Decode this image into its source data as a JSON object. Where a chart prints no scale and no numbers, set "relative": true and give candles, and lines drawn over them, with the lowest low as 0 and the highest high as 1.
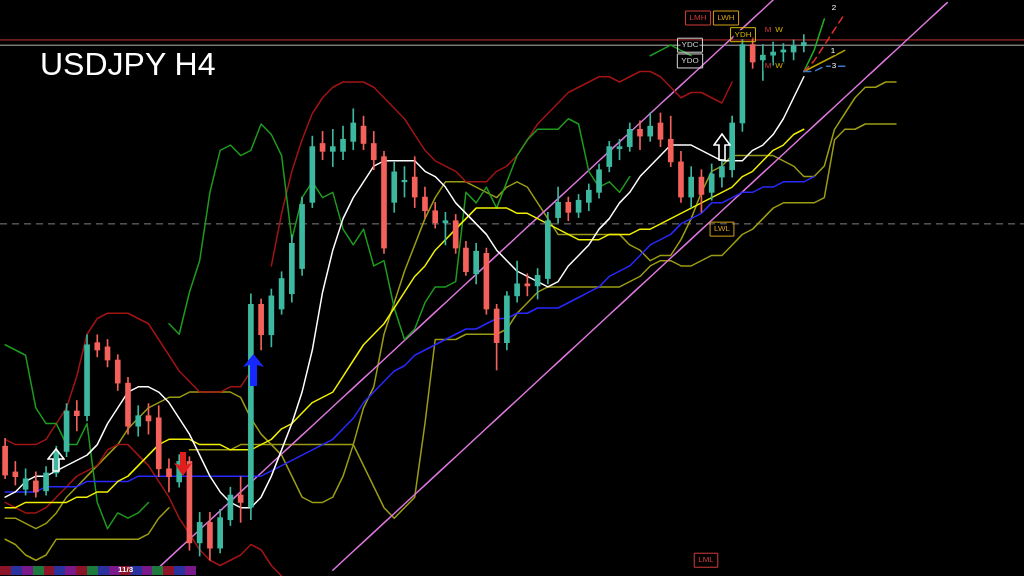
{
  "chart_data": {
    "type": "candlestick",
    "title": "USDJPY H4",
    "relative": true,
    "categories": [
      null,
      null,
      null,
      null,
      null,
      null,
      null,
      null,
      null,
      null,
      null,
      null,
      null,
      null,
      null,
      null,
      null,
      null,
      null,
      null,
      null,
      null,
      null,
      null,
      null,
      null,
      null,
      null,
      null,
      null,
      null,
      null,
      null,
      null,
      null,
      null,
      null,
      null,
      null,
      null,
      null,
      null,
      null,
      null,
      null,
      null,
      null,
      null,
      null,
      null,
      null,
      null,
      null,
      null,
      null,
      null,
      null,
      null,
      null,
      null,
      null,
      null,
      null,
      null,
      null,
      null,
      null,
      null,
      null,
      null,
      null,
      null,
      null,
      null,
      null,
      null,
      null,
      null,
      null,
      null,
      null,
      null,
      null,
      null,
      null,
      null,
      null,
      null,
      null,
      null,
      null,
      null,
      null,
      null,
      null,
      null,
      null,
      null,
      null,
      null
    ],
    "ohlc": [
      [
        0.217,
        0.232,
        0.155,
        0.162
      ],
      [
        0.168,
        0.188,
        0.143,
        0.159
      ],
      [
        0.135,
        0.174,
        0.124,
        0.155
      ],
      [
        0.151,
        0.168,
        0.12,
        0.13
      ],
      [
        0.132,
        0.178,
        0.124,
        0.166
      ],
      [
        0.166,
        0.217,
        0.159,
        0.207
      ],
      [
        0.207,
        0.298,
        0.197,
        0.284
      ],
      [
        0.284,
        0.304,
        0.246,
        0.275
      ],
      [
        0.275,
        0.429,
        0.265,
        0.41
      ],
      [
        0.414,
        0.429,
        0.387,
        0.4
      ],
      [
        0.406,
        0.42,
        0.368,
        0.381
      ],
      [
        0.381,
        0.391,
        0.323,
        0.337
      ],
      [
        0.337,
        0.348,
        0.24,
        0.255
      ],
      [
        0.255,
        0.294,
        0.236,
        0.275
      ],
      [
        0.275,
        0.298,
        0.24,
        0.265
      ],
      [
        0.271,
        0.294,
        0.159,
        0.174
      ],
      [
        0.174,
        0.193,
        0.13,
        0.159
      ],
      [
        0.149,
        0.201,
        0.139,
        0.188
      ],
      [
        0.188,
        0.197,
        0.019,
        0.033
      ],
      [
        0.033,
        0.091,
        0.008,
        0.072
      ],
      [
        0.072,
        0.091,
        0,
        0.023
      ],
      [
        0.023,
        0.097,
        0.014,
        0.081
      ],
      [
        0.077,
        0.139,
        0.066,
        0.124
      ],
      [
        0.124,
        0.159,
        0.072,
        0.11
      ],
      [
        0.101,
        0.507,
        0.077,
        0.487
      ],
      [
        0.487,
        0.497,
        0.4,
        0.429
      ],
      [
        0.429,
        0.516,
        0.406,
        0.503
      ],
      [
        0.478,
        0.549,
        0.468,
        0.536
      ],
      [
        0.507,
        0.619,
        0.491,
        0.603
      ],
      [
        0.555,
        0.691,
        0.542,
        0.677
      ],
      [
        0.681,
        0.807,
        0.671,
        0.787
      ],
      [
        0.793,
        0.816,
        0.762,
        0.778
      ],
      [
        0.778,
        0.82,
        0.749,
        0.787
      ],
      [
        0.778,
        0.826,
        0.762,
        0.801
      ],
      [
        0.797,
        0.859,
        0.781,
        0.832
      ],
      [
        0.826,
        0.845,
        0.781,
        0.793
      ],
      [
        0.793,
        0.816,
        0.743,
        0.762
      ],
      [
        0.768,
        0.778,
        0.584,
        0.594
      ],
      [
        0.681,
        0.758,
        0.662,
        0.739
      ],
      [
        0.72,
        0.749,
        0.691,
        0.723
      ],
      [
        0.729,
        0.768,
        0.671,
        0.691
      ],
      [
        0.691,
        0.71,
        0.652,
        0.665
      ],
      [
        0.665,
        0.681,
        0.632,
        0.642
      ],
      [
        0.642,
        0.662,
        0.6,
        0.646
      ],
      [
        0.646,
        0.658,
        0.584,
        0.594
      ],
      [
        0.594,
        0.607,
        0.542,
        0.549
      ],
      [
        0.545,
        0.603,
        0.526,
        0.588
      ],
      [
        0.584,
        0.594,
        0.468,
        0.478
      ],
      [
        0.478,
        0.487,
        0.362,
        0.414
      ],
      [
        0.414,
        0.511,
        0.4,
        0.503
      ],
      [
        0.503,
        0.569,
        0.491,
        0.526
      ],
      [
        0.526,
        0.545,
        0.503,
        0.522
      ],
      [
        0.522,
        0.555,
        0.497,
        0.542
      ],
      [
        0.536,
        0.662,
        0.526,
        0.646
      ],
      [
        0.652,
        0.71,
        0.642,
        0.681
      ],
      [
        0.681,
        0.691,
        0.646,
        0.662
      ],
      [
        0.662,
        0.696,
        0.652,
        0.685
      ],
      [
        0.681,
        0.716,
        0.665,
        0.704
      ],
      [
        0.7,
        0.754,
        0.689,
        0.743
      ],
      [
        0.749,
        0.797,
        0.739,
        0.787
      ],
      [
        0.783,
        0.801,
        0.762,
        0.787
      ],
      [
        0.787,
        0.832,
        0.778,
        0.82
      ],
      [
        0.82,
        0.836,
        0.781,
        0.807
      ],
      [
        0.807,
        0.851,
        0.797,
        0.826
      ],
      [
        0.832,
        0.851,
        0.787,
        0.801
      ],
      [
        0.801,
        0.845,
        0.749,
        0.758
      ],
      [
        0.758,
        0.778,
        0.681,
        0.691
      ],
      [
        0.691,
        0.749,
        0.671,
        0.729
      ],
      [
        0.729,
        0.743,
        0.662,
        0.696
      ],
      [
        0.7,
        0.754,
        0.685,
        0.735
      ],
      [
        0.729,
        0.762,
        0.71,
        0.749
      ],
      [
        0.743,
        0.845,
        0.729,
        0.832
      ],
      [
        0.832,
        0.994,
        0.816,
        0.981
      ],
      [
        0.981,
        0.994,
        0.936,
        0.948
      ],
      [
        0.952,
        0.981,
        0.913,
        0.961
      ],
      [
        0.961,
        0.986,
        0.942,
        0.967
      ],
      [
        0.967,
        0.983,
        0.946,
        0.971
      ],
      [
        0.967,
        0.99,
        0.952,
        0.979
      ],
      [
        0.979,
        1,
        0.967,
        0.985
      ],
      null,
      null,
      null,
      null,
      null,
      null,
      null,
      null,
      null,
      null,
      null,
      null,
      null,
      null,
      null,
      null,
      null,
      null,
      null,
      null,
      null
    ],
    "colors": [
      "#f4605a",
      "#f4605a",
      "#3cb8a0",
      "#f4605a",
      "#3cb8a0",
      "#3cb8a0",
      "#3cb8a0",
      "#f4605a",
      "#3cb8a0",
      "#f4605a",
      "#f4605a",
      "#f4605a",
      "#f4605a",
      "#3cb8a0",
      "#f4605a",
      "#f4605a",
      "#f4605a",
      "#3cb8a0",
      "#f4605a",
      "#3cb8a0",
      "#f4605a",
      "#3cb8a0",
      "#3cb8a0",
      "#f4605a",
      "#3cb8a0",
      "#f4605a",
      "#3cb8a0",
      "#3cb8a0",
      "#3cb8a0",
      "#3cb8a0",
      "#3cb8a0",
      "#f4605a",
      "#3cb8a0",
      "#3cb8a0",
      "#3cb8a0",
      "#f4605a",
      "#f4605a",
      "#f4605a",
      "#3cb8a0",
      "#3cb8a0",
      "#f4605a",
      "#f4605a",
      "#f4605a",
      "#3cb8a0",
      "#f4605a",
      "#f4605a",
      "#3cb8a0",
      "#f4605a",
      "#f4605a",
      "#3cb8a0",
      "#3cb8a0",
      "#f4605a",
      "#3cb8a0",
      "#3cb8a0",
      "#3cb8a0",
      "#f4605a",
      "#3cb8a0",
      "#3cb8a0",
      "#3cb8a0",
      "#3cb8a0",
      "#3cb8a0",
      "#3cb8a0",
      "#f4605a",
      "#3cb8a0",
      "#f4605a",
      "#f4605a",
      "#f4605a",
      "#3cb8a0",
      "#f4605a",
      "#3cb8a0",
      "#3cb8a0",
      "#3cb8a0",
      "#3cb8a0",
      "#f4605a",
      "#3cb8a0",
      "#3cb8a0",
      "#3cb8a0",
      "#3cb8a0",
      "#3cb8a0",
      null,
      null,
      null,
      null,
      null,
      null,
      null,
      null,
      null,
      null,
      null,
      null,
      null,
      null,
      null,
      null,
      null,
      null,
      null,
      null,
      null
    ],
    "series": [
      {
        "type": "line",
        "color": "#9c9c14",
        "values": [
          0.08,
          0.08,
          0.07,
          0.06,
          0.07,
          0.09,
          0.12,
          0.14,
          0.16,
          0.18,
          0.2,
          0.22,
          0.25,
          0.27,
          0.29,
          0.3,
          0.31,
          0.31,
          0.32,
          0.32,
          0.32,
          0.32,
          0.32,
          0.31,
          0.27,
          0.24,
          0.22,
          0.2,
          0.16,
          0.12,
          0.11,
          0.11,
          0.12,
          0.16,
          0.22,
          0.29,
          0.33,
          0.43,
          0.49,
          0.55,
          0.6,
          0.65,
          0.69,
          0.72,
          0.72,
          0.72,
          0.71,
          0.7,
          0.69,
          0.71,
          0.72,
          0.71,
          0.68,
          0.65,
          0.62,
          0.62,
          0.62,
          0.62,
          0.62,
          0.62,
          0.62,
          0.6,
          0.59,
          0.57,
          0.58,
          0.58,
          0.61,
          0.65,
          0.7,
          0.74,
          0.75,
          0.77,
          0.77,
          0.77,
          0.77,
          0.77,
          0.76,
          0.75,
          0.73,
          0.73,
          0.75,
          0.82,
          0.85,
          0.88,
          0.9,
          0.9,
          0.91,
          0.91,
          null,
          null,
          null,
          null,
          null,
          null,
          null,
          null,
          null,
          null,
          null,
          null
        ]
      },
      {
        "type": "line",
        "color": "#9c9c14",
        "values": [
          0.04,
          0.03,
          0.01,
          0.0,
          0.01,
          0.04,
          0.04,
          0.04,
          0.04,
          0.04,
          0.04,
          0.04,
          0.04,
          0.04,
          0.05,
          0.08,
          0.1,
          null,
          0.21,
          0.21,
          0.21,
          0.21,
          0.21,
          0.22,
          0.22,
          0.22,
          0.22,
          0.22,
          0.22,
          0.22,
          0.22,
          0.22,
          0.22,
          0.22,
          0.22,
          0.18,
          0.14,
          0.1,
          0.08,
          0.1,
          0.12,
          0.26,
          0.42,
          0.42,
          0.42,
          0.43,
          0.43,
          0.43,
          0.43,
          0.44,
          0.47,
          0.49,
          0.51,
          0.52,
          0.52,
          0.52,
          0.52,
          0.52,
          0.52,
          0.52,
          0.52,
          0.53,
          0.54,
          0.56,
          0.57,
          0.57,
          0.56,
          0.56,
          0.57,
          0.58,
          0.58,
          0.6,
          0.62,
          0.63,
          0.65,
          0.67,
          0.68,
          0.68,
          0.68,
          0.68,
          0.69,
          0.8,
          0.82,
          0.82,
          0.83,
          0.83,
          0.83,
          0.83,
          null,
          null,
          null,
          null,
          null,
          null,
          null,
          null,
          null,
          null,
          null,
          null
        ]
      },
      {
        "type": "line",
        "color": "#dd77dd",
        "values": [
          null,
          null,
          null,
          null,
          null,
          null,
          null,
          null,
          null,
          null,
          null,
          null,
          null,
          null,
          null,
          -0.014,
          0.004,
          0.022,
          0.04,
          0.058,
          0.076,
          0.094,
          0.112,
          0.13,
          0.148,
          0.166,
          0.184,
          0.202,
          0.22,
          0.238,
          0.256,
          0.274,
          0.292,
          0.31,
          0.328,
          0.346,
          0.364,
          0.382,
          0.4,
          0.418,
          0.436,
          0.454,
          0.472,
          0.49,
          0.508,
          0.526,
          0.544,
          0.562,
          0.58,
          0.598,
          0.616,
          0.634,
          0.652,
          0.67,
          0.688,
          0.706,
          0.724,
          0.742,
          0.76,
          0.778,
          0.796,
          0.814,
          0.832,
          0.85,
          0.868,
          0.886,
          0.904,
          0.922,
          0.94,
          0.958,
          0.976,
          0.994,
          1.012,
          1.03,
          1.048,
          1.066,
          null,
          null,
          null,
          null,
          null,
          null,
          null,
          null,
          null,
          null,
          null,
          null,
          null,
          null,
          null,
          null,
          null,
          null,
          null,
          null,
          null,
          null,
          null,
          null
        ]
      },
      {
        "type": "line",
        "color": "#dd77dd",
        "values": [
          null,
          null,
          null,
          null,
          null,
          null,
          null,
          null,
          null,
          null,
          null,
          null,
          null,
          null,
          null,
          null,
          null,
          null,
          null,
          null,
          null,
          null,
          null,
          null,
          null,
          null,
          null,
          null,
          null,
          null,
          null,
          null,
          -0.019,
          -0.001,
          0.017,
          0.035,
          0.053,
          0.071,
          0.089,
          0.107,
          0.125,
          0.143,
          0.161,
          0.179,
          0.197,
          0.215,
          0.233,
          0.251,
          0.269,
          0.287,
          0.305,
          0.323,
          0.341,
          0.359,
          0.377,
          0.395,
          0.413,
          0.431,
          0.449,
          0.467,
          0.485,
          0.503,
          0.521,
          0.539,
          0.557,
          0.575,
          0.593,
          0.611,
          0.629,
          0.647,
          0.665,
          0.683,
          0.701,
          0.719,
          0.737,
          0.755,
          0.773,
          0.791,
          0.809,
          0.827,
          0.845,
          0.863,
          0.881,
          0.899,
          0.917,
          0.935,
          0.953,
          0.971,
          0.989,
          1.007,
          1.025,
          1.043,
          1.061,
          null,
          null,
          null,
          null,
          null,
          null,
          null
        ]
      },
      {
        "type": "line",
        "color": "#a01414",
        "values": [
          0.23,
          0.22,
          0.22,
          0.22,
          0.23,
          0.26,
          0.29,
          0.35,
          0.43,
          0.46,
          0.47,
          0.47,
          0.47,
          0.46,
          0.45,
          0.42,
          0.39,
          0.36,
          0.34,
          0.32,
          0.32,
          0.32,
          0.33,
          0.33,
          0.36,
          null,
          0.56,
          0.66,
          0.74,
          0.8,
          0.85,
          0.88,
          0.9,
          0.91,
          0.91,
          0.91,
          0.9,
          0.88,
          0.86,
          0.84,
          0.81,
          0.78,
          0.76,
          0.75,
          0.74,
          0.72,
          0.72,
          0.72,
          0.74,
          0.75,
          0.77,
          0.8,
          0.83,
          0.85,
          0.87,
          0.89,
          0.9,
          0.91,
          0.92,
          0.92,
          0.91,
          0.92,
          0.93,
          0.93,
          0.92,
          0.9,
          0.88,
          0.89,
          0.89,
          0.88,
          0.87,
          0.91,
          null,
          null,
          null,
          null,
          null,
          null,
          null,
          null,
          null,
          null,
          null,
          null,
          null,
          null,
          null,
          null,
          null,
          null,
          null,
          null,
          null,
          null,
          null,
          null,
          null,
          null,
          null,
          null
        ]
      },
      {
        "type": "line",
        "color": "#a01414",
        "values": [
          0.11,
          0.1,
          0.09,
          0.09,
          0.1,
          0.12,
          0.14,
          0.16,
          0.17,
          0.18,
          0.21,
          0.22,
          0.22,
          0.2,
          0.18,
          0.15,
          0.12,
          0.08,
          0.05,
          0.02,
          0.0,
          -0.01,
          0.0,
          0.01,
          0.03,
          0.02,
          -0.01,
          -0.03,
          null,
          null,
          null,
          null,
          null,
          null,
          null,
          null,
          null,
          null,
          null,
          null,
          null,
          null,
          null,
          null,
          null,
          null,
          null,
          null,
          null,
          null,
          null,
          null,
          null,
          null,
          null,
          null,
          null,
          null,
          null,
          null,
          null,
          null,
          null,
          null,
          null,
          null,
          null,
          null,
          null,
          null,
          null,
          null,
          null,
          null,
          null,
          null,
          null,
          null,
          null,
          null,
          null,
          null,
          null,
          null,
          null,
          null,
          null,
          null,
          null,
          null,
          null,
          null,
          null,
          null,
          null,
          null,
          null,
          null,
          null,
          null
        ]
      },
      {
        "type": "line",
        "color": "#1e9b1e",
        "values": [
          0.41,
          0.4,
          0.39,
          0.29,
          0.26,
          0.26,
          0.22,
          0.22,
          0.26,
          0.11,
          0.06,
          0.09,
          0.08,
          0.09,
          0.11,
          null,
          0.45,
          0.43,
          0.51,
          0.57,
          0.7,
          0.78,
          0.79,
          0.77,
          0.78,
          0.83,
          0.81,
          0.77,
          0.61,
          0.69,
          0.72,
          0.69,
          0.7,
          0.63,
          0.6,
          0.63,
          0.56,
          0.57,
          0.48,
          0.42,
          0.44,
          0.49,
          0.52,
          0.52,
          0.53,
          0.7,
          0.68,
          0.71,
          0.67,
          0.72,
          0.77,
          0.8,
          0.82,
          0.82,
          0.82,
          0.84,
          0.83,
          0.74,
          0.71,
          0.72,
          0.7,
          0.73,
          null,
          0.96,
          0.97,
          0.98,
          0.97,
          0.96,
          null,
          null,
          null,
          null,
          null,
          null,
          null,
          null,
          null,
          null,
          null,
          null,
          null,
          null,
          null,
          null,
          null,
          null,
          null,
          null,
          null,
          null,
          null,
          null,
          null,
          null,
          null,
          null,
          null,
          null,
          null,
          null
        ]
      },
      {
        "type": "line",
        "color": "#2828ff",
        "values": [
          0.13,
          0.13,
          0.13,
          0.13,
          0.14,
          0.14,
          0.14,
          0.14,
          0.15,
          0.15,
          0.15,
          0.15,
          0.15,
          0.16,
          0.16,
          0.16,
          0.16,
          0.16,
          0.16,
          0.16,
          0.16,
          0.16,
          0.16,
          0.16,
          0.16,
          0.16,
          0.17,
          0.18,
          0.19,
          0.2,
          0.21,
          0.22,
          0.23,
          0.25,
          0.27,
          0.3,
          0.32,
          0.34,
          0.36,
          0.37,
          0.39,
          0.4,
          0.41,
          0.42,
          0.43,
          0.44,
          0.44,
          0.45,
          0.46,
          0.46,
          0.47,
          0.47,
          0.48,
          0.48,
          0.48,
          0.49,
          0.5,
          0.51,
          0.52,
          0.54,
          0.55,
          0.56,
          0.58,
          0.6,
          0.61,
          0.62,
          0.64,
          0.65,
          0.66,
          0.68,
          0.68,
          0.69,
          0.7,
          0.7,
          0.71,
          0.71,
          0.72,
          0.72,
          0.72,
          0.73,
          null,
          null,
          null,
          null,
          null,
          null,
          null,
          null,
          null,
          null,
          null,
          null,
          null,
          null,
          null,
          null,
          null,
          null,
          null,
          null
        ]
      },
      {
        "type": "line",
        "color": "#f0f000",
        "values": [
          0.1,
          0.1,
          0.11,
          0.11,
          0.11,
          0.11,
          0.11,
          0.12,
          0.12,
          0.13,
          0.13,
          0.15,
          0.16,
          0.18,
          0.2,
          0.22,
          0.23,
          0.23,
          0.23,
          0.22,
          0.22,
          0.22,
          0.21,
          0.21,
          0.21,
          0.22,
          0.23,
          0.25,
          0.26,
          0.28,
          0.3,
          0.31,
          0.32,
          0.35,
          0.38,
          0.41,
          0.43,
          0.45,
          0.48,
          0.51,
          0.54,
          0.56,
          0.59,
          0.61,
          0.63,
          0.65,
          0.67,
          0.67,
          0.67,
          0.67,
          0.66,
          0.66,
          0.65,
          0.64,
          0.63,
          0.62,
          0.61,
          0.61,
          0.61,
          0.62,
          0.62,
          0.62,
          0.63,
          0.63,
          0.64,
          0.65,
          0.66,
          0.67,
          0.68,
          0.69,
          0.7,
          0.71,
          0.73,
          0.74,
          0.76,
          0.78,
          0.79,
          0.81,
          0.82,
          null,
          null,
          null,
          null,
          null,
          null,
          null,
          null,
          null,
          null,
          null,
          null,
          null,
          null,
          null,
          null,
          null,
          null,
          null,
          null,
          null
        ]
      },
      {
        "type": "line",
        "color": "#ffffff",
        "values": [
          0.12,
          0.13,
          0.15,
          0.16,
          0.16,
          0.17,
          0.18,
          0.19,
          0.2,
          0.22,
          0.26,
          0.29,
          0.32,
          0.33,
          0.33,
          0.32,
          0.3,
          0.27,
          0.24,
          0.2,
          0.16,
          0.13,
          0.11,
          0.1,
          0.1,
          0.12,
          0.16,
          0.21,
          0.26,
          0.32,
          0.4,
          0.51,
          0.59,
          0.65,
          0.69,
          0.72,
          0.75,
          0.76,
          0.76,
          0.76,
          0.76,
          0.74,
          0.73,
          0.71,
          0.68,
          0.66,
          0.64,
          0.62,
          0.59,
          0.57,
          0.55,
          0.54,
          0.53,
          0.52,
          0.53,
          0.56,
          0.58,
          0.6,
          0.63,
          0.65,
          0.68,
          0.7,
          0.73,
          0.75,
          0.77,
          0.79,
          0.79,
          0.79,
          0.78,
          0.77,
          0.76,
          0.76,
          0.76,
          0.78,
          0.79,
          0.81,
          0.84,
          0.88,
          0.92,
          null,
          null,
          null,
          null,
          null,
          null,
          null,
          null,
          null,
          null,
          null,
          null,
          null,
          null,
          null,
          null,
          null,
          null,
          null,
          null,
          null
        ]
      },
      {
        "type": "line",
        "color": "#b8a400",
        "values": [
          null,
          null,
          null,
          null,
          null,
          null,
          null,
          null,
          null,
          null,
          null,
          null,
          null,
          null,
          null,
          null,
          null,
          null,
          null,
          null,
          null,
          null,
          null,
          null,
          null,
          null,
          null,
          null,
          null,
          null,
          null,
          null,
          null,
          null,
          null,
          null,
          null,
          null,
          null,
          null,
          null,
          null,
          null,
          null,
          null,
          null,
          null,
          null,
          null,
          null,
          null,
          null,
          null,
          null,
          null,
          null,
          null,
          null,
          null,
          null,
          null,
          null,
          null,
          null,
          null,
          null,
          null,
          null,
          null,
          null,
          null,
          null,
          null,
          null,
          null,
          null,
          null,
          null,
          0.93,
          0.94,
          0.95,
          0.96,
          0.97,
          null,
          null,
          null,
          null,
          null,
          null,
          null,
          null,
          null,
          null,
          null,
          null,
          null,
          null,
          null,
          null,
          null
        ]
      },
      {
        "type": "line",
        "color": "#20b020",
        "values": [
          null,
          null,
          null,
          null,
          null,
          null,
          null,
          null,
          null,
          null,
          null,
          null,
          null,
          null,
          null,
          null,
          null,
          null,
          null,
          null,
          null,
          null,
          null,
          null,
          null,
          null,
          null,
          null,
          null,
          null,
          null,
          null,
          null,
          null,
          null,
          null,
          null,
          null,
          null,
          null,
          null,
          null,
          null,
          null,
          null,
          null,
          null,
          null,
          null,
          null,
          null,
          null,
          null,
          null,
          null,
          null,
          null,
          null,
          null,
          null,
          null,
          null,
          null,
          null,
          null,
          null,
          null,
          null,
          null,
          null,
          null,
          null,
          null,
          null,
          null,
          null,
          null,
          null,
          0.93,
          0.97,
          1.03,
          null,
          null,
          null,
          null,
          null,
          null,
          null,
          null,
          null,
          null,
          null,
          null,
          null,
          null,
          null,
          null,
          null,
          null,
          null
        ]
      },
      {
        "type": "line",
        "color": "#e03030",
        "line_style": "dashed",
        "values": [
          null,
          null,
          null,
          null,
          null,
          null,
          null,
          null,
          null,
          null,
          null,
          null,
          null,
          null,
          null,
          null,
          null,
          null,
          null,
          null,
          null,
          null,
          null,
          null,
          null,
          null,
          null,
          null,
          null,
          null,
          null,
          null,
          null,
          null,
          null,
          null,
          null,
          null,
          null,
          null,
          null,
          null,
          null,
          null,
          null,
          null,
          null,
          null,
          null,
          null,
          null,
          null,
          null,
          null,
          null,
          null,
          null,
          null,
          null,
          null,
          null,
          null,
          null,
          null,
          null,
          null,
          null,
          null,
          null,
          null,
          null,
          null,
          null,
          null,
          null,
          null,
          null,
          null,
          0.93,
          0.95,
          0.98,
          1.01,
          1.04,
          null,
          null,
          null,
          null,
          null,
          null,
          null,
          null,
          null,
          null,
          null,
          null,
          null,
          null,
          null,
          null,
          null
        ]
      },
      {
        "type": "line",
        "color": "#3a78c8",
        "line_style": "dashed",
        "values": [
          null,
          null,
          null,
          null,
          null,
          null,
          null,
          null,
          null,
          null,
          null,
          null,
          null,
          null,
          null,
          null,
          null,
          null,
          null,
          null,
          null,
          null,
          null,
          null,
          null,
          null,
          null,
          null,
          null,
          null,
          null,
          null,
          null,
          null,
          null,
          null,
          null,
          null,
          null,
          null,
          null,
          null,
          null,
          null,
          null,
          null,
          null,
          null,
          null,
          null,
          null,
          null,
          null,
          null,
          null,
          null,
          null,
          null,
          null,
          null,
          null,
          null,
          null,
          null,
          null,
          null,
          null,
          null,
          null,
          null,
          null,
          null,
          null,
          null,
          null,
          null,
          null,
          null,
          0.93,
          0.93,
          0.94,
          0.94,
          0.94,
          null,
          null,
          null,
          null,
          null,
          null,
          null,
          null,
          null,
          null,
          null,
          null,
          null,
          null,
          null,
          null,
          null
        ]
      }
    ],
    "ref_lines": [
      {
        "axis": "y",
        "value": 0.99,
        "color": "#c83232"
      },
      {
        "axis": "y",
        "value": 0.98,
        "color": "#b4b4b4"
      },
      {
        "axis": "y",
        "value": 0.64,
        "color": "#808080",
        "line_style": "dashed"
      }
    ],
    "annotations": [
      {
        "text": "YDC",
        "y": 0.98
      },
      {
        "text": "YDO",
        "y": 0.95
      },
      "LMH",
      "LWH",
      {
        "text": "YDH",
        "y": 1.0
      },
      "M",
      "W",
      {
        "text": "M",
        "y": 0.94
      },
      {
        "text": "W",
        "y": 0.94
      },
      {
        "text": "1",
        "y": 0.97
      },
      "2",
      {
        "text": "3",
        "y": 0.94
      },
      {
        "text": "LWL",
        "y": 0.63
      },
      {
        "text": "LML",
        "y": 0.0
      },
      "11/3"
    ]
  }
}
